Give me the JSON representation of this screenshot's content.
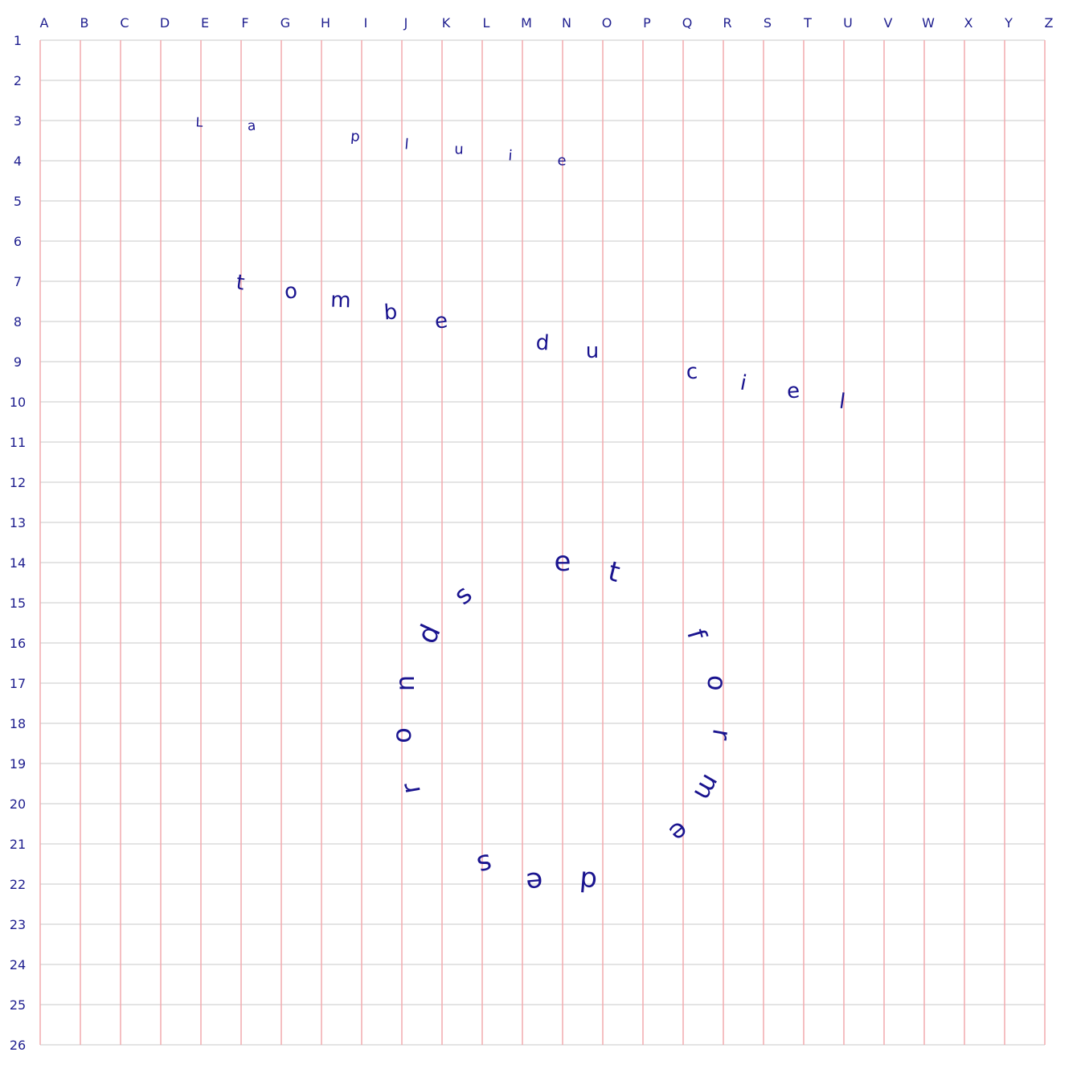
{
  "grid": {
    "columns": [
      "A",
      "B",
      "C",
      "D",
      "E",
      "F",
      "G",
      "H",
      "I",
      "J",
      "K",
      "L",
      "M",
      "N",
      "O",
      "P",
      "Q",
      "R",
      "S",
      "T",
      "U",
      "V",
      "W",
      "X",
      "Y",
      "Z"
    ],
    "rows": [
      "1",
      "2",
      "3",
      "4",
      "5",
      "6",
      "7",
      "8",
      "9",
      "10",
      "11",
      "12",
      "13",
      "14",
      "15",
      "16",
      "17",
      "18",
      "19",
      "20",
      "21",
      "22",
      "23",
      "24",
      "25",
      "26"
    ],
    "colors": {
      "vertical_lines": "#f2aaae",
      "horizontal_lines": "#dcdcdc",
      "labels": "#1f1f8f",
      "text": "#1a148f"
    }
  },
  "phrases": [
    {
      "text": "La pluie",
      "letters": [
        "L",
        "a",
        "p",
        "l",
        "u",
        "i",
        "e"
      ]
    },
    {
      "text": "tombe du ciel",
      "letters": [
        "t",
        "o",
        "m",
        "b",
        "e",
        "d",
        "u",
        "c",
        "i",
        "e",
        "l"
      ]
    },
    {
      "text": "et forme des ronds",
      "letters": [
        "e",
        "t",
        "f",
        "o",
        "r",
        "m",
        "e",
        "d",
        "e",
        "s",
        "r",
        "o",
        "n",
        "d",
        "s"
      ]
    }
  ]
}
